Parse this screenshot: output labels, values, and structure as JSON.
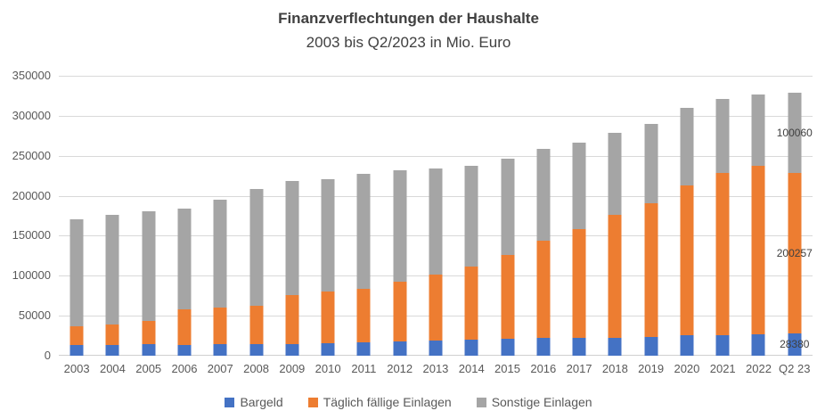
{
  "title": {
    "line1": "Finanzverflechtungen der Haushalte",
    "line2": "2003 bis Q2/2023 in Mio. Euro"
  },
  "chart_data": {
    "type": "bar",
    "stacked": true,
    "title": "Finanzverflechtungen der Haushalte",
    "subtitle": "2003 bis Q2/2023 in Mio. Euro",
    "unit": "Mio. Euro",
    "xlabel": "",
    "ylabel": "",
    "ylim": [
      0,
      350000
    ],
    "ytick_step": 50000,
    "grid": true,
    "legend_position": "bottom",
    "categories": [
      "2003",
      "2004",
      "2005",
      "2006",
      "2007",
      "2008",
      "2009",
      "2010",
      "2011",
      "2012",
      "2013",
      "2014",
      "2015",
      "2016",
      "2017",
      "2018",
      "2019",
      "2020",
      "2021",
      "2022",
      "Q2 23"
    ],
    "series": [
      {
        "name": "Bargeld",
        "color": "#4472C4",
        "values": [
          13500,
          13500,
          14500,
          13000,
          14000,
          14000,
          15000,
          15500,
          17000,
          17500,
          19500,
          20000,
          21000,
          22500,
          22500,
          22500,
          23500,
          25500,
          25500,
          27000,
          28380
        ]
      },
      {
        "name": "Täglich fällige Einlagen",
        "color": "#ED7D31",
        "values": [
          23500,
          25500,
          29000,
          45000,
          46000,
          48500,
          61000,
          65000,
          66500,
          75500,
          82000,
          91500,
          105500,
          121500,
          136000,
          153500,
          167000,
          187500,
          203000,
          210500,
          200257
        ]
      },
      {
        "name": "Sonstige Einlagen",
        "color": "#A5A5A5",
        "values": [
          133500,
          137000,
          137000,
          126500,
          135500,
          146500,
          143000,
          140000,
          143500,
          139000,
          132500,
          126500,
          119500,
          114500,
          108000,
          102500,
          99500,
          96500,
          92000,
          89000,
          100060
        ]
      }
    ],
    "data_labels": {
      "category": "Q2 23",
      "labels": [
        {
          "series": "Bargeld",
          "text": "28380"
        },
        {
          "series": "Täglich fällige Einlagen",
          "text": "200257"
        },
        {
          "series": "Sonstige Einlagen",
          "text": "100060"
        }
      ]
    },
    "colors": {
      "gridline": "#D9D9D9",
      "axis_text": "#595959",
      "title_text": "#404040",
      "data_label_text": "#404040",
      "background": "#FFFFFF"
    }
  }
}
